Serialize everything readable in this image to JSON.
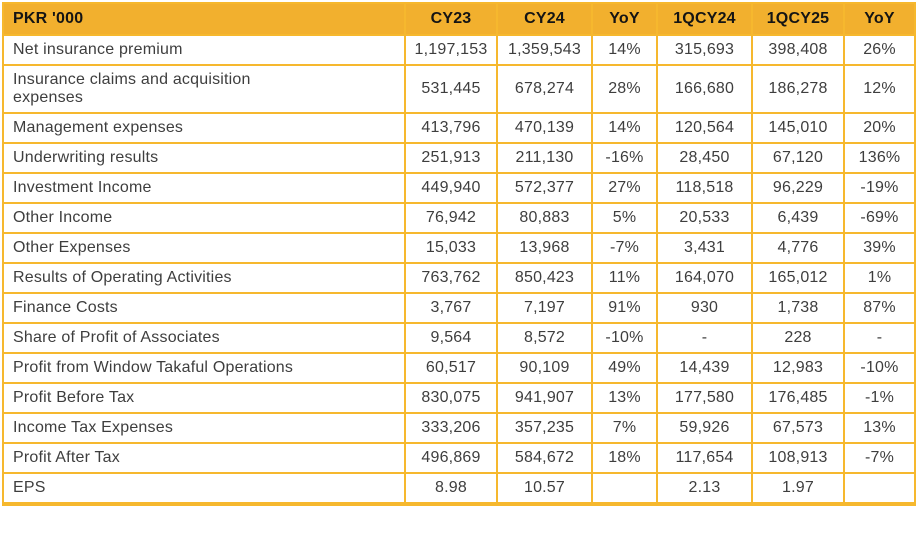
{
  "colors": {
    "header_bg": "#F2B02E",
    "grid_border": "#F6B82E",
    "header_text": "#141414",
    "body_text": "#3E3E3E"
  },
  "chart_data": {
    "type": "table",
    "title": "PKR '000",
    "columns": [
      "PKR '000",
      "CY23",
      "CY24",
      "YoY",
      "1QCY24",
      "1QCY25",
      "YoY"
    ],
    "rows": [
      {
        "label": "Net insurance premium",
        "values": [
          "1,197,153",
          "1,359,543",
          "14%",
          "315,693",
          "398,408",
          "26%"
        ]
      },
      {
        "label": "Insurance claims and acquisition expenses",
        "values": [
          "531,445",
          "678,274",
          "28%",
          "166,680",
          "186,278",
          "12%"
        ]
      },
      {
        "label": "Management expenses",
        "values": [
          "413,796",
          "470,139",
          "14%",
          "120,564",
          "145,010",
          "20%"
        ]
      },
      {
        "label": "Underwriting results",
        "values": [
          "251,913",
          "211,130",
          "-16%",
          "28,450",
          "67,120",
          "136%"
        ]
      },
      {
        "label": "Investment Income",
        "values": [
          "449,940",
          "572,377",
          "27%",
          "118,518",
          "96,229",
          "-19%"
        ]
      },
      {
        "label": "Other Income",
        "values": [
          "76,942",
          "80,883",
          "5%",
          "20,533",
          "6,439",
          "-69%"
        ]
      },
      {
        "label": "Other Expenses",
        "values": [
          "15,033",
          "13,968",
          "-7%",
          "3,431",
          "4,776",
          "39%"
        ]
      },
      {
        "label": "Results of Operating Activities",
        "values": [
          "763,762",
          "850,423",
          "11%",
          "164,070",
          "165,012",
          "1%"
        ]
      },
      {
        "label": "Finance Costs",
        "values": [
          "3,767",
          "7,197",
          "91%",
          "930",
          "1,738",
          "87%"
        ]
      },
      {
        "label": "Share of Profit of Associates",
        "values": [
          "9,564",
          "8,572",
          "-10%",
          "-",
          "228",
          "-"
        ]
      },
      {
        "label": "Profit from Window Takaful Operations",
        "values": [
          "60,517",
          "90,109",
          "49%",
          "14,439",
          "12,983",
          "-10%"
        ]
      },
      {
        "label": "Profit Before Tax",
        "values": [
          "830,075",
          "941,907",
          "13%",
          "177,580",
          "176,485",
          "-1%"
        ]
      },
      {
        "label": "Income Tax Expenses",
        "values": [
          "333,206",
          "357,235",
          "7%",
          "59,926",
          "67,573",
          "13%"
        ]
      },
      {
        "label": "Profit After Tax",
        "values": [
          "496,869",
          "584,672",
          "18%",
          "117,654",
          "108,913",
          "-7%"
        ]
      },
      {
        "label": "EPS",
        "values": [
          "8.98",
          "10.57",
          "",
          "2.13",
          "1.97",
          ""
        ]
      }
    ]
  }
}
